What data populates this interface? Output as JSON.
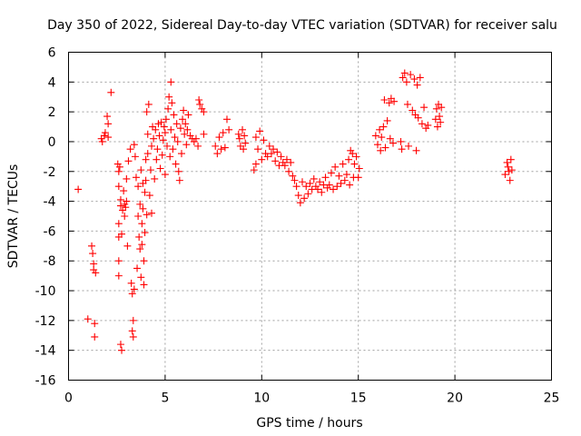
{
  "chart_data": {
    "type": "scatter",
    "title": "Day 350 of 2022, Sidereal Day-to-day VTEC variation (SDTVAR) for receiver salu",
    "xlabel": "GPS time / hours",
    "ylabel": "SDTVAR / TECUs",
    "xlim": [
      0,
      25
    ],
    "ylim": [
      -16,
      6
    ],
    "xticks": [
      0,
      5,
      10,
      15,
      20,
      25
    ],
    "yticks": [
      -16,
      -14,
      -12,
      -10,
      -8,
      -6,
      -4,
      -2,
      0,
      2,
      4,
      6
    ],
    "xtick_labels": [
      "0",
      "5",
      "10",
      "15",
      "20",
      "25"
    ],
    "ytick_labels": [
      "-16",
      "-14",
      "-12",
      "-10",
      "-8",
      "-6",
      "-4",
      "-2",
      "0",
      "2",
      "4",
      "6"
    ],
    "grid": true,
    "marker": "+",
    "color": "#ff0000",
    "series": [
      {
        "name": "SDTVAR",
        "points": [
          [
            0.5,
            -3.2
          ],
          [
            1.0,
            -11.9
          ],
          [
            1.2,
            -7.0
          ],
          [
            1.25,
            -7.5
          ],
          [
            1.3,
            -8.2
          ],
          [
            1.3,
            -8.6
          ],
          [
            1.35,
            -12.2
          ],
          [
            1.35,
            -13.1
          ],
          [
            1.4,
            -8.8
          ],
          [
            1.7,
            0.2
          ],
          [
            1.75,
            0.0
          ],
          [
            1.85,
            0.4
          ],
          [
            1.9,
            0.6
          ],
          [
            2.0,
            1.7
          ],
          [
            2.05,
            1.2
          ],
          [
            2.05,
            0.3
          ],
          [
            2.2,
            3.3
          ],
          [
            2.55,
            -1.5
          ],
          [
            2.6,
            -2.0
          ],
          [
            2.6,
            -3.0
          ],
          [
            2.6,
            -5.5
          ],
          [
            2.6,
            -6.4
          ],
          [
            2.6,
            -8.0
          ],
          [
            2.6,
            -9.0
          ],
          [
            2.65,
            -1.7
          ],
          [
            2.7,
            -3.9
          ],
          [
            2.7,
            -4.3
          ],
          [
            2.7,
            -13.6
          ],
          [
            2.75,
            -14.0
          ],
          [
            2.75,
            -6.2
          ],
          [
            2.8,
            -4.6
          ],
          [
            2.85,
            -3.3
          ],
          [
            2.9,
            -4.2
          ],
          [
            2.9,
            -5.0
          ],
          [
            2.95,
            -4.4
          ],
          [
            3.0,
            -2.5
          ],
          [
            3.0,
            -4.0
          ],
          [
            3.05,
            -7.0
          ],
          [
            3.1,
            -1.3
          ],
          [
            3.2,
            -0.5
          ],
          [
            3.25,
            -9.5
          ],
          [
            3.3,
            -10.2
          ],
          [
            3.3,
            -12.7
          ],
          [
            3.35,
            -12.0
          ],
          [
            3.35,
            -13.1
          ],
          [
            3.4,
            -0.2
          ],
          [
            3.4,
            -9.9
          ],
          [
            3.45,
            -1.0
          ],
          [
            3.5,
            -2.4
          ],
          [
            3.55,
            -8.5
          ],
          [
            3.6,
            -3.0
          ],
          [
            3.6,
            -5.0
          ],
          [
            3.65,
            -6.4
          ],
          [
            3.7,
            -4.2
          ],
          [
            3.7,
            -7.2
          ],
          [
            3.75,
            -1.9
          ],
          [
            3.75,
            -9.1
          ],
          [
            3.8,
            -5.5
          ],
          [
            3.8,
            -6.9
          ],
          [
            3.85,
            -2.8
          ],
          [
            3.85,
            -4.5
          ],
          [
            3.9,
            -8.0
          ],
          [
            3.9,
            -9.6
          ],
          [
            3.95,
            -3.4
          ],
          [
            3.95,
            -6.1
          ],
          [
            4.0,
            -1.2
          ],
          [
            4.0,
            -2.6
          ],
          [
            4.05,
            -4.9
          ],
          [
            4.05,
            2.0
          ],
          [
            4.1,
            0.5
          ],
          [
            4.1,
            -0.8
          ],
          [
            4.15,
            2.5
          ],
          [
            4.2,
            -3.6
          ],
          [
            4.25,
            -1.9
          ],
          [
            4.3,
            -0.3
          ],
          [
            4.3,
            -4.8
          ],
          [
            4.35,
            1.0
          ],
          [
            4.4,
            0.2
          ],
          [
            4.45,
            -2.5
          ],
          [
            4.5,
            0.8
          ],
          [
            4.55,
            -1.2
          ],
          [
            4.6,
            -0.5
          ],
          [
            4.65,
            1.2
          ],
          [
            4.7,
            0.4
          ],
          [
            4.75,
            -1.8
          ],
          [
            4.8,
            1.3
          ],
          [
            4.85,
            -0.9
          ],
          [
            4.9,
            0.1
          ],
          [
            4.95,
            1.0
          ],
          [
            5.0,
            -2.2
          ],
          [
            5.0,
            0.6
          ],
          [
            5.05,
            1.5
          ],
          [
            5.1,
            -0.3
          ],
          [
            5.15,
            2.2
          ],
          [
            5.2,
            3.0
          ],
          [
            5.25,
            -1.0
          ],
          [
            5.3,
            4.0
          ],
          [
            5.3,
            0.8
          ],
          [
            5.35,
            2.6
          ],
          [
            5.4,
            -0.5
          ],
          [
            5.45,
            1.8
          ],
          [
            5.5,
            0.3
          ],
          [
            5.55,
            -1.5
          ],
          [
            5.6,
            1.2
          ],
          [
            5.65,
            0.0
          ],
          [
            5.7,
            -2.0
          ],
          [
            5.75,
            -2.6
          ],
          [
            5.8,
            0.9
          ],
          [
            5.85,
            -0.8
          ],
          [
            5.9,
            1.5
          ],
          [
            5.95,
            2.1
          ],
          [
            6.0,
            0.5
          ],
          [
            6.05,
            1.2
          ],
          [
            6.1,
            -0.2
          ],
          [
            6.15,
            0.8
          ],
          [
            6.2,
            1.8
          ],
          [
            6.3,
            0.4
          ],
          [
            6.4,
            0.2
          ],
          [
            6.5,
            0.0
          ],
          [
            6.6,
            0.2
          ],
          [
            6.7,
            -0.3
          ],
          [
            6.75,
            2.8
          ],
          [
            6.8,
            2.5
          ],
          [
            6.9,
            2.2
          ],
          [
            7.0,
            0.5
          ],
          [
            7.0,
            2.0
          ],
          [
            7.6,
            -0.3
          ],
          [
            7.7,
            -0.8
          ],
          [
            7.8,
            0.3
          ],
          [
            7.9,
            -0.5
          ],
          [
            8.0,
            0.6
          ],
          [
            8.1,
            -0.4
          ],
          [
            8.2,
            1.5
          ],
          [
            8.3,
            0.8
          ],
          [
            8.8,
            0.5
          ],
          [
            8.85,
            0.2
          ],
          [
            8.9,
            -0.3
          ],
          [
            9.0,
            0.8
          ],
          [
            9.05,
            -0.5
          ],
          [
            9.1,
            0.4
          ],
          [
            9.15,
            -0.1
          ],
          [
            9.6,
            -1.9
          ],
          [
            9.7,
            -1.5
          ],
          [
            9.7,
            0.3
          ],
          [
            9.8,
            -0.5
          ],
          [
            9.9,
            0.7
          ],
          [
            10.0,
            -1.2
          ],
          [
            10.1,
            0.1
          ],
          [
            10.2,
            -0.8
          ],
          [
            10.3,
            -1.0
          ],
          [
            10.4,
            -0.3
          ],
          [
            10.5,
            -0.8
          ],
          [
            10.6,
            -0.5
          ],
          [
            10.7,
            -1.3
          ],
          [
            10.8,
            -0.7
          ],
          [
            10.9,
            -1.6
          ],
          [
            11.0,
            -1.0
          ],
          [
            11.1,
            -1.4
          ],
          [
            11.2,
            -1.6
          ],
          [
            11.3,
            -1.2
          ],
          [
            11.4,
            -2.0
          ],
          [
            11.5,
            -1.4
          ],
          [
            11.6,
            -2.3
          ],
          [
            11.7,
            -2.6
          ],
          [
            11.8,
            -3.0
          ],
          [
            11.9,
            -3.6
          ],
          [
            12.0,
            -4.1
          ],
          [
            12.1,
            -2.7
          ],
          [
            12.2,
            -3.8
          ],
          [
            12.3,
            -3.0
          ],
          [
            12.4,
            -3.5
          ],
          [
            12.5,
            -2.8
          ],
          [
            12.6,
            -3.2
          ],
          [
            12.7,
            -2.5
          ],
          [
            12.8,
            -3.0
          ],
          [
            12.9,
            -3.2
          ],
          [
            13.0,
            -2.7
          ],
          [
            13.1,
            -3.4
          ],
          [
            13.2,
            -2.9
          ],
          [
            13.3,
            -2.4
          ],
          [
            13.4,
            -3.1
          ],
          [
            13.5,
            -2.9
          ],
          [
            13.6,
            -2.1
          ],
          [
            13.7,
            -3.2
          ],
          [
            13.8,
            -1.7
          ],
          [
            13.9,
            -3.0
          ],
          [
            14.0,
            -2.3
          ],
          [
            14.1,
            -2.8
          ],
          [
            14.2,
            -1.5
          ],
          [
            14.3,
            -2.6
          ],
          [
            14.4,
            -2.2
          ],
          [
            14.5,
            -1.2
          ],
          [
            14.55,
            -2.9
          ],
          [
            14.6,
            -0.6
          ],
          [
            14.7,
            -0.8
          ],
          [
            14.75,
            -2.4
          ],
          [
            14.8,
            -1.5
          ],
          [
            14.9,
            -1.0
          ],
          [
            15.0,
            -2.4
          ],
          [
            15.05,
            -1.8
          ],
          [
            15.9,
            0.4
          ],
          [
            16.0,
            -0.2
          ],
          [
            16.1,
            0.8
          ],
          [
            16.15,
            -0.6
          ],
          [
            16.2,
            0.3
          ],
          [
            16.3,
            1.0
          ],
          [
            16.35,
            2.8
          ],
          [
            16.4,
            -0.4
          ],
          [
            16.5,
            1.4
          ],
          [
            16.6,
            2.6
          ],
          [
            16.65,
            0.2
          ],
          [
            16.7,
            2.9
          ],
          [
            16.8,
            -0.1
          ],
          [
            16.85,
            2.7
          ],
          [
            17.2,
            0.0
          ],
          [
            17.25,
            -0.5
          ],
          [
            17.3,
            4.3
          ],
          [
            17.4,
            4.6
          ],
          [
            17.5,
            4.0
          ],
          [
            17.55,
            2.5
          ],
          [
            17.6,
            -0.3
          ],
          [
            17.7,
            4.5
          ],
          [
            17.8,
            2.1
          ],
          [
            17.9,
            4.2
          ],
          [
            17.95,
            1.8
          ],
          [
            18.0,
            -0.6
          ],
          [
            18.05,
            3.8
          ],
          [
            18.1,
            1.6
          ],
          [
            18.2,
            4.3
          ],
          [
            18.3,
            1.2
          ],
          [
            18.4,
            2.3
          ],
          [
            18.5,
            0.9
          ],
          [
            18.6,
            1.1
          ],
          [
            19.0,
            1.5
          ],
          [
            19.05,
            2.2
          ],
          [
            19.1,
            1.0
          ],
          [
            19.15,
            2.5
          ],
          [
            19.2,
            1.7
          ],
          [
            19.25,
            1.3
          ],
          [
            19.3,
            2.3
          ],
          [
            22.6,
            -2.2
          ],
          [
            22.7,
            -1.4
          ],
          [
            22.75,
            -1.7
          ],
          [
            22.8,
            -2.0
          ],
          [
            22.85,
            -2.6
          ],
          [
            22.9,
            -1.2
          ],
          [
            22.95,
            -1.9
          ]
        ]
      }
    ]
  }
}
